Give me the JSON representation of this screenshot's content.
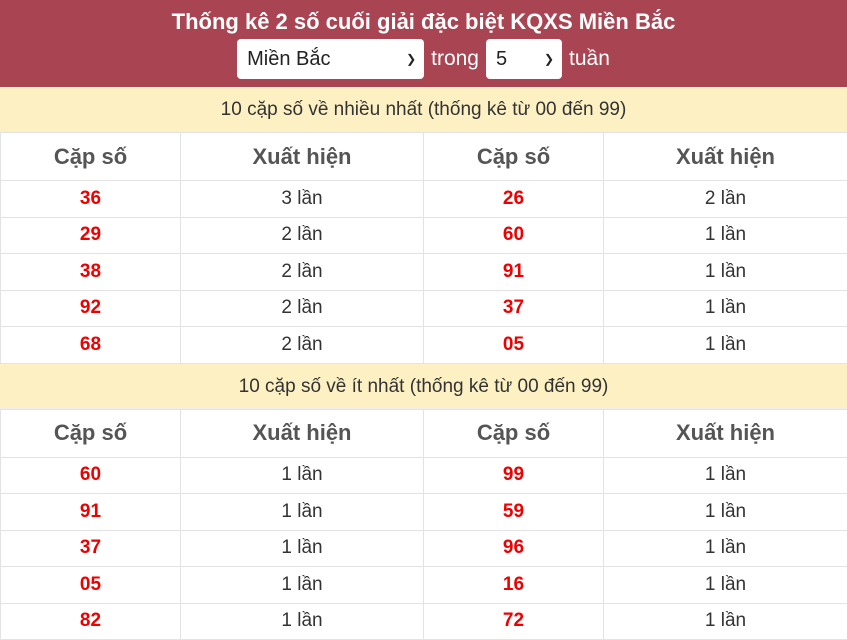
{
  "header": {
    "title": "Thống kê 2 số cuối giải đặc biệt KQXS Miền Bắc",
    "region": "Miền Bắc",
    "in_label": "trong",
    "weeks": "5",
    "weeks_unit": "tuần"
  },
  "columns": [
    "Cặp số",
    "Xuất hiện",
    "Cặp số",
    "Xuất hiện"
  ],
  "most": {
    "title": "10 cặp số về nhiều nhất (thống kê từ 00 đến 99)",
    "rows": [
      [
        "36",
        "3 lần",
        "26",
        "2 lần"
      ],
      [
        "29",
        "2 lần",
        "60",
        "1 lần"
      ],
      [
        "38",
        "2 lần",
        "91",
        "1 lần"
      ],
      [
        "92",
        "2 lần",
        "37",
        "1 lần"
      ],
      [
        "68",
        "2 lần",
        "05",
        "1 lần"
      ]
    ]
  },
  "least": {
    "title": "10 cặp số về ít nhất (thống kê từ 00 đến 99)",
    "rows": [
      [
        "60",
        "1 lần",
        "99",
        "1 lần"
      ],
      [
        "91",
        "1 lần",
        "59",
        "1 lần"
      ],
      [
        "37",
        "1 lần",
        "96",
        "1 lần"
      ],
      [
        "05",
        "1 lần",
        "16",
        "1 lần"
      ],
      [
        "82",
        "1 lần",
        "72",
        "1 lần"
      ]
    ]
  }
}
